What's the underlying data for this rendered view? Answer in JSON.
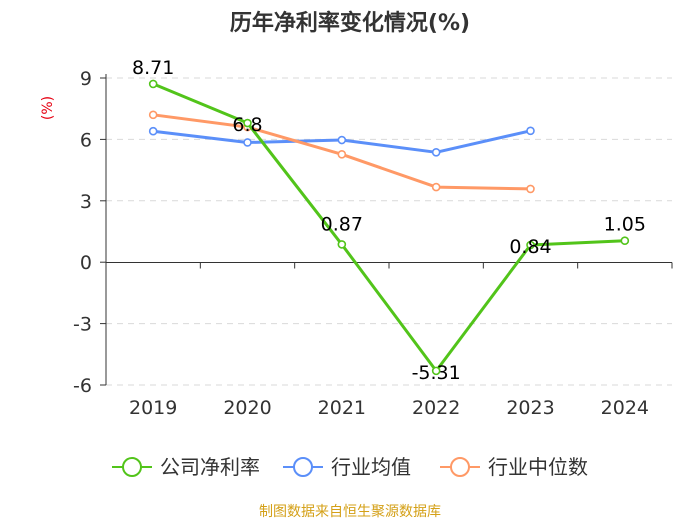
{
  "chart_data": {
    "type": "line",
    "title": "历年净利率变化情况(%)",
    "ylabel": "(%)",
    "categories": [
      "2019",
      "2020",
      "2021",
      "2022",
      "2023",
      "2024"
    ],
    "ylim": [
      -6,
      9
    ],
    "yticks": [
      9,
      6,
      3,
      0,
      -3,
      -6
    ],
    "series": [
      {
        "name": "公司净利率",
        "color": "#52c41a",
        "values": [
          8.71,
          6.8,
          0.87,
          -5.31,
          0.84,
          1.05
        ],
        "labels": [
          "8.71",
          "6.8",
          "0.87",
          "-5.31",
          "0.84",
          "1.05"
        ]
      },
      {
        "name": "行业均值",
        "color": "#5b8ff9",
        "values": [
          6.4,
          5.85,
          5.97,
          5.37,
          6.42,
          null
        ]
      },
      {
        "name": "行业中位数",
        "color": "#ff9966",
        "values": [
          7.2,
          6.6,
          5.27,
          3.67,
          3.58,
          null
        ]
      }
    ],
    "source": "制图数据来自恒生聚源数据库"
  }
}
